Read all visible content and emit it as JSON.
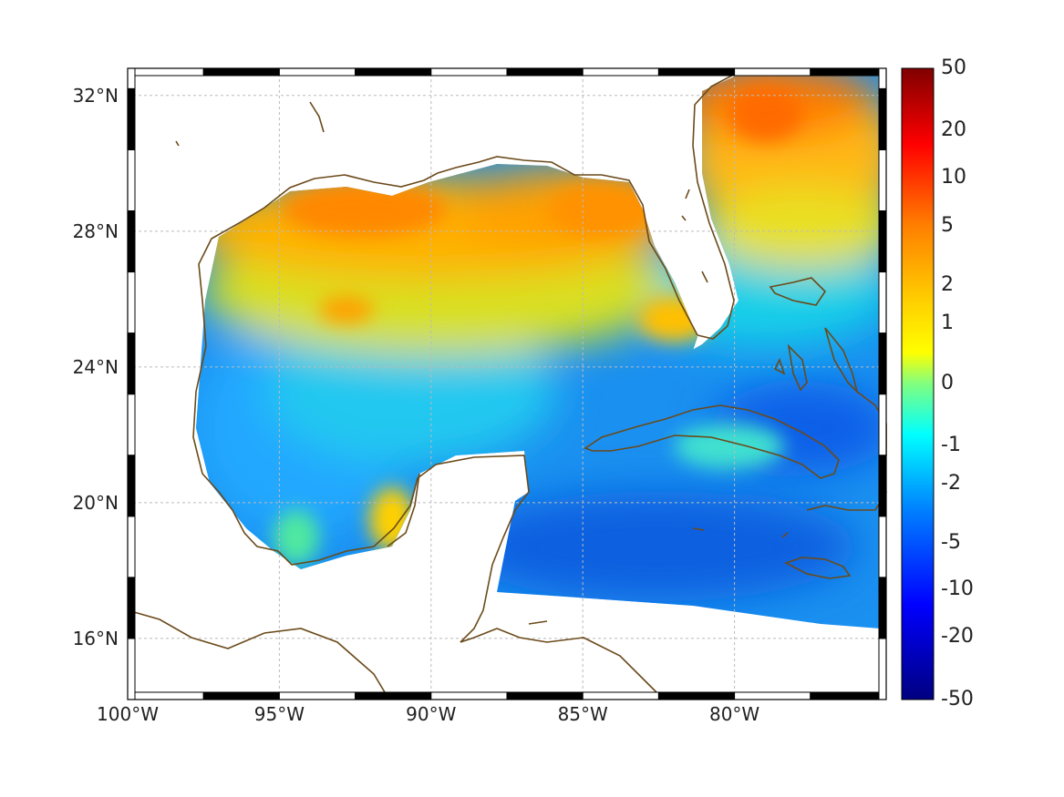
{
  "map": {
    "lon_range": [
      -100,
      -75
    ],
    "lat_range": [
      14.2,
      32.8
    ],
    "lat_ticks": [
      {
        "value": 16,
        "label": "16°N"
      },
      {
        "value": 20,
        "label": "20°N"
      },
      {
        "value": 24,
        "label": "24°N"
      },
      {
        "value": 28,
        "label": "28°N"
      },
      {
        "value": 32,
        "label": "32°N"
      }
    ],
    "lon_ticks": [
      {
        "value": -100,
        "label": "100°W"
      },
      {
        "value": -95,
        "label": "95°W"
      },
      {
        "value": -90,
        "label": "90°W"
      },
      {
        "value": -85,
        "label": "85°W"
      },
      {
        "value": -80,
        "label": "80°W"
      }
    ],
    "grid": true,
    "coastline_color": "#6b4a1a",
    "frame_color": "#000000"
  },
  "colorbar": {
    "labels": [
      "50",
      "20",
      "10",
      "5",
      "2",
      "1",
      "0",
      "-1",
      "-2",
      "-5",
      "-10",
      "-20",
      "-50"
    ],
    "colormap": "jet",
    "colors_top_to_bottom": [
      "#800000",
      "#ff0000",
      "#ff8000",
      "#ffff00",
      "#80ff80",
      "#00ffff",
      "#0080ff",
      "#0000ff",
      "#000080"
    ]
  }
}
